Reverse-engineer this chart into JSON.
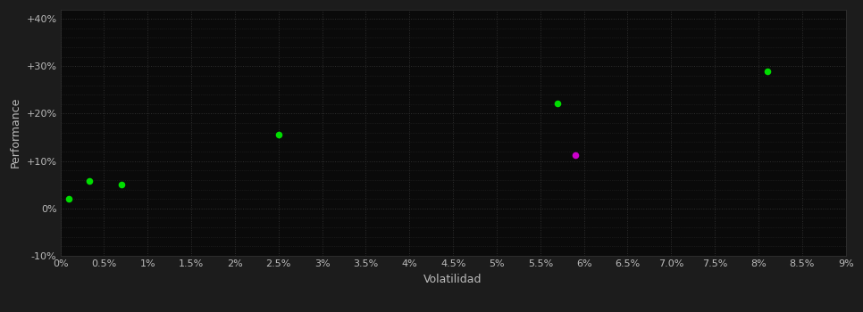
{
  "background_color": "#1c1c1c",
  "plot_bg_color": "#0a0a0a",
  "grid_color": "#333333",
  "text_color": "#bbbbbb",
  "xlabel": "Volatilidad",
  "ylabel": "Performance",
  "xlim": [
    0,
    0.09
  ],
  "ylim": [
    -0.1,
    0.42
  ],
  "xticks": [
    0.0,
    0.005,
    0.01,
    0.015,
    0.02,
    0.025,
    0.03,
    0.035,
    0.04,
    0.045,
    0.05,
    0.055,
    0.06,
    0.065,
    0.07,
    0.075,
    0.08,
    0.085,
    0.09
  ],
  "yticks_major": [
    -0.1,
    0.0,
    0.1,
    0.2,
    0.3,
    0.4
  ],
  "yticks_minor": [
    -0.1,
    -0.08,
    -0.06,
    -0.04,
    -0.02,
    0.0,
    0.02,
    0.04,
    0.06,
    0.08,
    0.1,
    0.12,
    0.14,
    0.16,
    0.18,
    0.2,
    0.22,
    0.24,
    0.26,
    0.28,
    0.3,
    0.32,
    0.34,
    0.36,
    0.38,
    0.4
  ],
  "green_points": [
    [
      0.001,
      0.02
    ],
    [
      0.0033,
      0.058
    ],
    [
      0.007,
      0.05
    ],
    [
      0.025,
      0.155
    ],
    [
      0.057,
      0.222
    ],
    [
      0.081,
      0.29
    ]
  ],
  "magenta_points": [
    [
      0.059,
      0.112
    ]
  ],
  "point_color_green": "#00dd00",
  "point_color_magenta": "#cc00cc",
  "point_size": 30,
  "tick_fontsize": 8,
  "label_fontsize": 9
}
